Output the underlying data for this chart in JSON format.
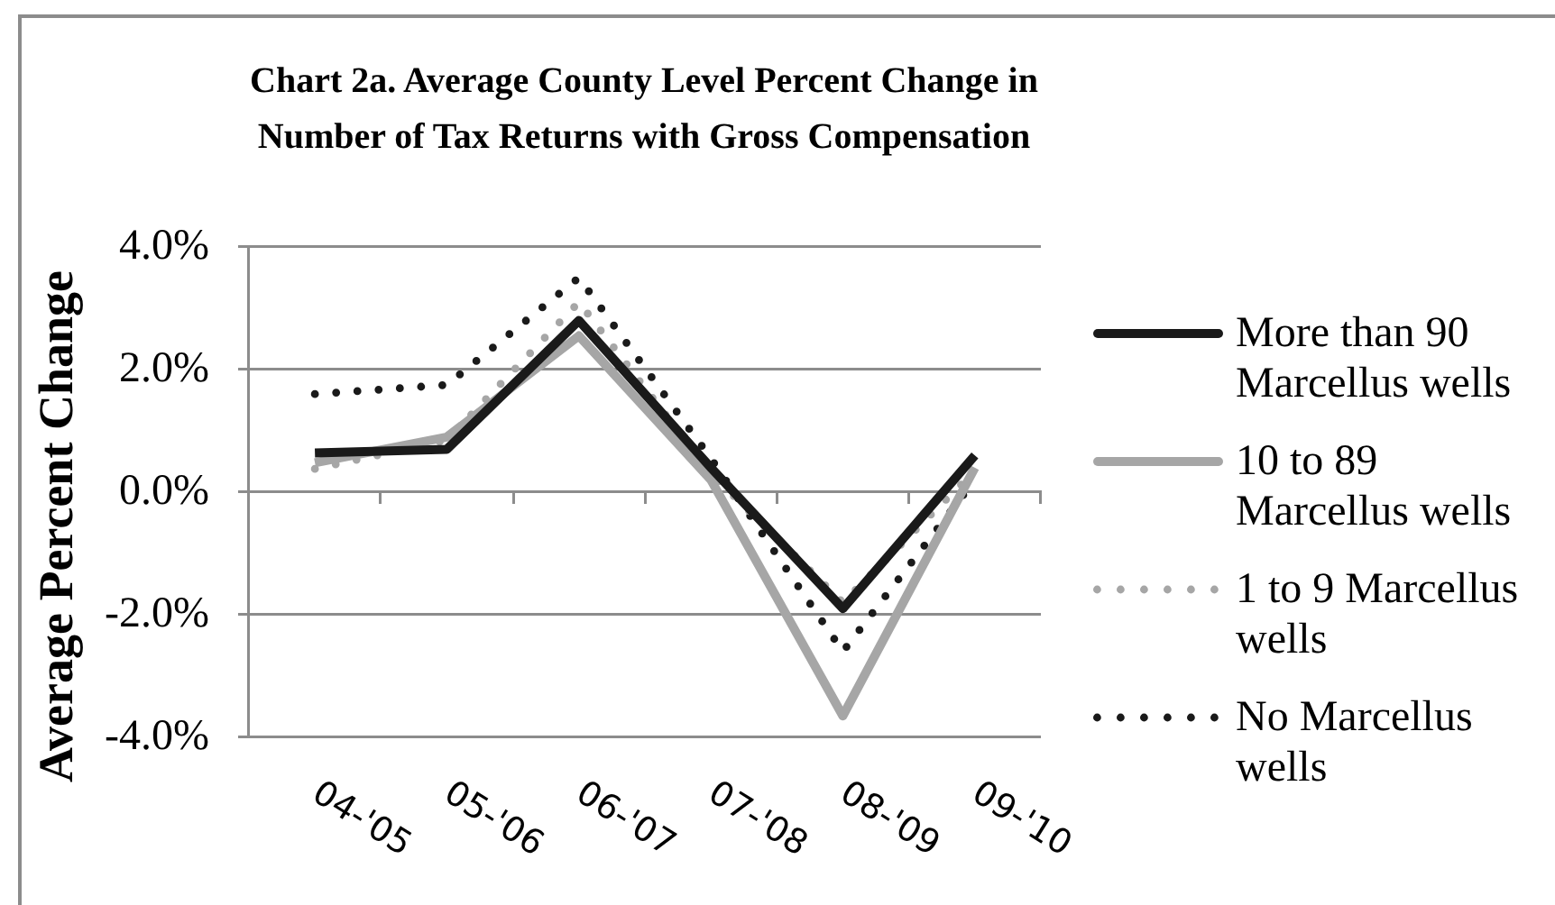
{
  "chart_data": {
    "type": "line",
    "title": "Chart 2a. Average County Level Percent Change in Number of Tax Returns with Gross Compensation",
    "ylabel": "Average Percent Change",
    "categories": [
      "04-'05",
      "05-'06",
      "06-'07",
      "07-'08",
      "08-'09",
      "09-'10"
    ],
    "series": [
      {
        "name": "More than 90 Marcellus wells",
        "color": "#1a1a1a",
        "line_style": "solid",
        "values": [
          0.64,
          0.7,
          2.8,
          0.4,
          -1.9,
          0.6
        ]
      },
      {
        "name": "10 to 89 Marcellus wells",
        "color": "#a6a6a6",
        "line_style": "solid",
        "values": [
          0.48,
          0.9,
          2.55,
          0.2,
          -3.65,
          0.4
        ]
      },
      {
        "name": "1 to 9 Marcellus wells",
        "color": "#a6a6a6",
        "line_style": "dotted",
        "values": [
          0.38,
          0.85,
          3.1,
          0.3,
          -1.8,
          0.35
        ]
      },
      {
        "name": "No Marcellus wells",
        "color": "#1a1a1a",
        "line_style": "dotted",
        "values": [
          1.6,
          1.75,
          3.5,
          0.55,
          -2.6,
          0.2
        ]
      }
    ],
    "ylim": [
      -4,
      4
    ],
    "yticks": [
      {
        "value": -4,
        "label": "-4.0%"
      },
      {
        "value": -2,
        "label": "-2.0%"
      },
      {
        "value": 0,
        "label": "0.0%"
      },
      {
        "value": 2,
        "label": "2.0%"
      },
      {
        "value": 4,
        "label": "4.0%"
      }
    ],
    "grid": "y",
    "legend": "right",
    "marker": "none"
  }
}
